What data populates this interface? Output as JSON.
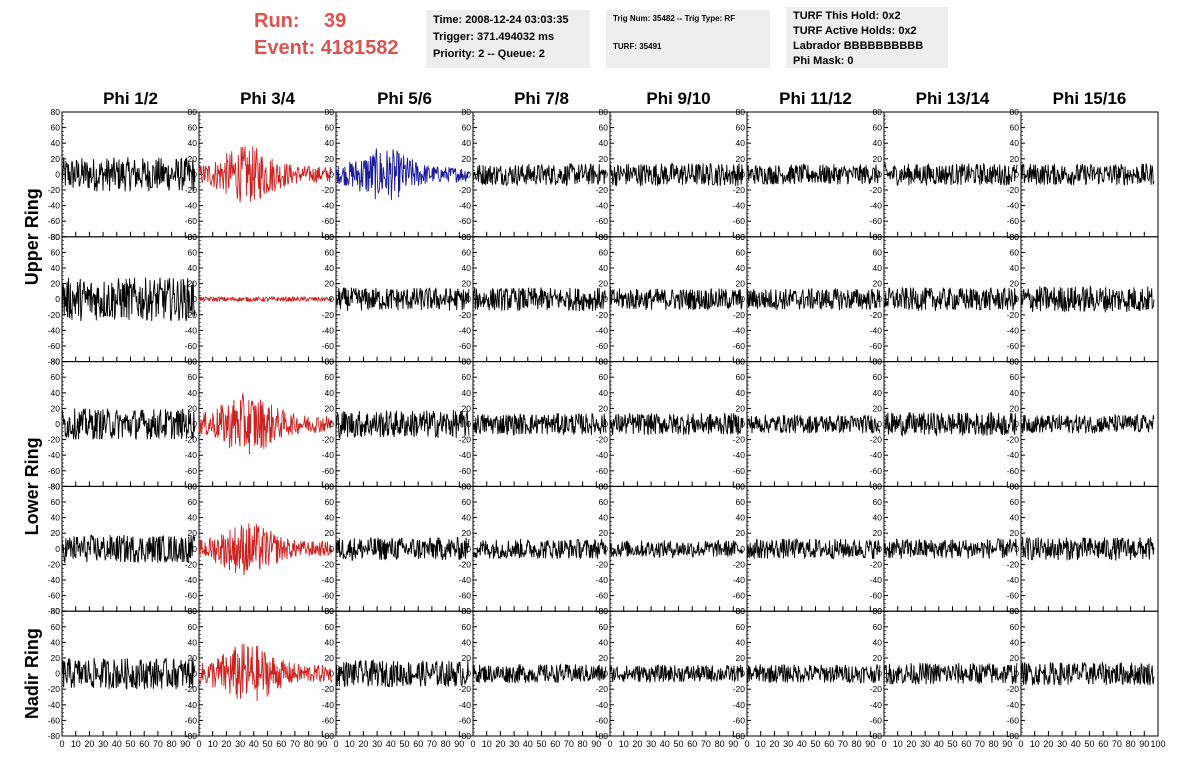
{
  "header": {
    "run_label": "Run:",
    "run_value": "39",
    "event_label": "Event:",
    "event_value": "4181582"
  },
  "info_boxes": [
    {
      "lines": [
        "Time: 2008-12-24 03:03:35",
        "Trigger: 371.494032 ms",
        "Priority: 2 -- Queue: 2"
      ]
    },
    {
      "lines": [
        "Trig Num: 35482 -- Trig Type: RF",
        "",
        "TURF: 35491"
      ]
    },
    {
      "lines": [
        "TURF This Hold: 0x2",
        "TURF Active Holds: 0x2",
        "Labrador BBBBBBBBBB",
        "Phi Mask: 0"
      ]
    }
  ],
  "colors": {
    "trace_default": "#000000",
    "trace_triggered": "#cc2222",
    "trace_highlight": "#1a1a99",
    "header_text": "#d9534f"
  },
  "chart_data": {
    "type": "line",
    "description_columns": [
      "Phi 1/2",
      "Phi 3/4",
      "Phi 5/6",
      "Phi 7/8",
      "Phi 9/10",
      "Phi 11/12",
      "Phi 13/14",
      "Phi 15/16"
    ],
    "row_labels": [
      "Upper Ring",
      "Lower Ring",
      "Nadir Ring"
    ],
    "rows": 5,
    "xlim": [
      0,
      100
    ],
    "ylim": [
      -80,
      80
    ],
    "x_tick_labels": [
      "0",
      "10",
      "20",
      "30",
      "40",
      "50",
      "60",
      "70",
      "80",
      "90",
      "100"
    ],
    "y_tick_labels": [
      "-80",
      "-60",
      "-40",
      "-20",
      "0",
      "20",
      "40",
      "60",
      "80"
    ],
    "panels": [
      [
        {
          "amp": 22,
          "env": "flat",
          "color": "trace_default"
        },
        {
          "amp": 30,
          "env": "burst",
          "color": "trace_triggered"
        },
        {
          "amp": 28,
          "env": "burst",
          "color": "trace_highlight"
        },
        {
          "amp": 14,
          "env": "flat",
          "color": "trace_default"
        },
        {
          "amp": 15,
          "env": "flat",
          "color": "trace_default"
        },
        {
          "amp": 13,
          "env": "flat",
          "color": "trace_default"
        },
        {
          "amp": 14,
          "env": "flat",
          "color": "trace_default"
        },
        {
          "amp": 14,
          "env": "flat",
          "color": "trace_default"
        }
      ],
      [
        {
          "amp": 28,
          "env": "flat",
          "color": "trace_default"
        },
        {
          "amp": 3,
          "env": "flat",
          "color": "trace_triggered"
        },
        {
          "amp": 15,
          "env": "flat",
          "color": "trace_default"
        },
        {
          "amp": 15,
          "env": "flat",
          "color": "trace_default"
        },
        {
          "amp": 14,
          "env": "flat",
          "color": "trace_default"
        },
        {
          "amp": 14,
          "env": "flat",
          "color": "trace_default"
        },
        {
          "amp": 15,
          "env": "flat",
          "color": "trace_default"
        },
        {
          "amp": 17,
          "env": "flat",
          "color": "trace_default"
        }
      ],
      [
        {
          "amp": 20,
          "env": "flat",
          "color": "trace_default"
        },
        {
          "amp": 32,
          "env": "burst",
          "color": "trace_triggered"
        },
        {
          "amp": 18,
          "env": "flat",
          "color": "trace_default"
        },
        {
          "amp": 14,
          "env": "flat",
          "color": "trace_default"
        },
        {
          "amp": 14,
          "env": "flat",
          "color": "trace_default"
        },
        {
          "amp": 12,
          "env": "flat",
          "color": "trace_default"
        },
        {
          "amp": 15,
          "env": "flat",
          "color": "trace_default"
        },
        {
          "amp": 12,
          "env": "flat",
          "color": "trace_default"
        }
      ],
      [
        {
          "amp": 18,
          "env": "flat",
          "color": "trace_default"
        },
        {
          "amp": 28,
          "env": "burst",
          "color": "trace_triggered"
        },
        {
          "amp": 15,
          "env": "flat",
          "color": "trace_default"
        },
        {
          "amp": 13,
          "env": "flat",
          "color": "trace_default"
        },
        {
          "amp": 11,
          "env": "flat",
          "color": "trace_default"
        },
        {
          "amp": 13,
          "env": "flat",
          "color": "trace_default"
        },
        {
          "amp": 13,
          "env": "flat",
          "color": "trace_default"
        },
        {
          "amp": 15,
          "env": "flat",
          "color": "trace_default"
        }
      ],
      [
        {
          "amp": 20,
          "env": "flat",
          "color": "trace_default"
        },
        {
          "amp": 32,
          "env": "burst",
          "color": "trace_triggered"
        },
        {
          "amp": 17,
          "env": "flat",
          "color": "trace_default"
        },
        {
          "amp": 12,
          "env": "flat",
          "color": "trace_default"
        },
        {
          "amp": 11,
          "env": "flat",
          "color": "trace_default"
        },
        {
          "amp": 12,
          "env": "flat",
          "color": "trace_default"
        },
        {
          "amp": 14,
          "env": "flat",
          "color": "trace_default"
        },
        {
          "amp": 15,
          "env": "flat",
          "color": "trace_default"
        }
      ]
    ]
  }
}
